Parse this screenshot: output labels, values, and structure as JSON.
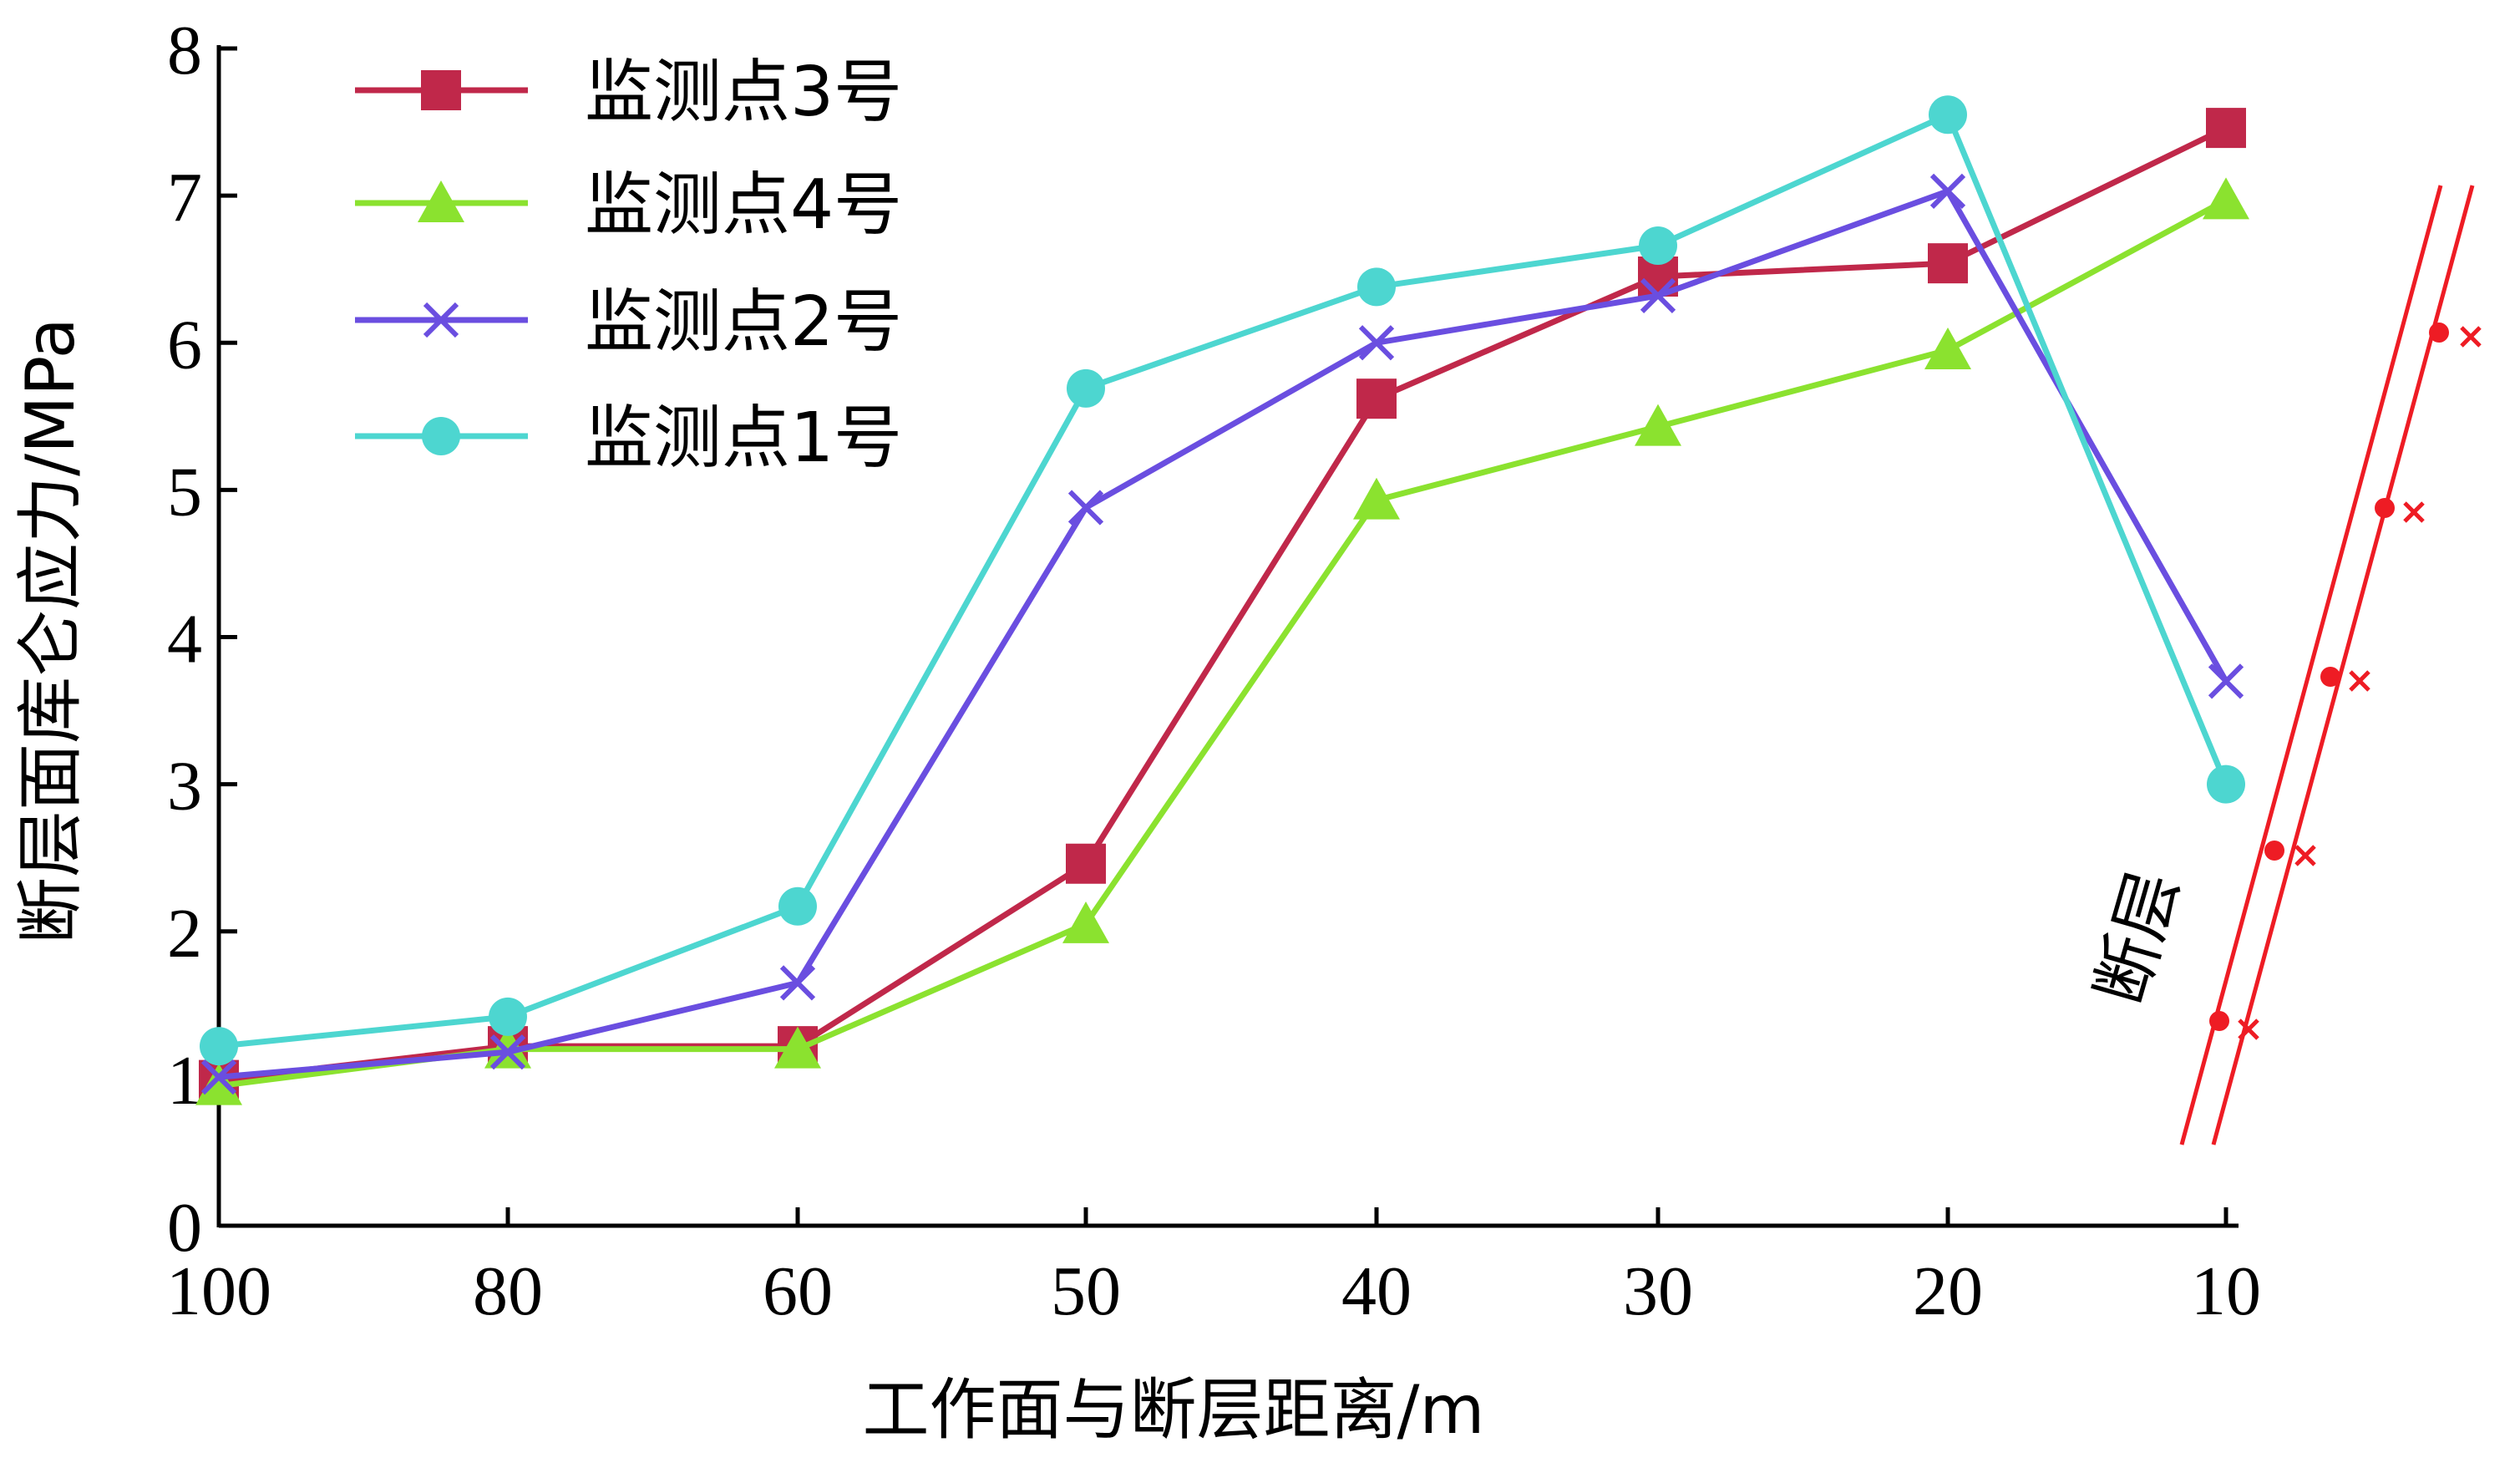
{
  "chart_data": {
    "type": "line",
    "xlabel": "工作面与断层距离/m",
    "ylabel": "断层面库仑应力/MPa",
    "categories": [
      "100",
      "80",
      "60",
      "50",
      "40",
      "30",
      "20",
      "10"
    ],
    "yticks": [
      "0",
      "1",
      "2",
      "3",
      "4",
      "5",
      "6",
      "7",
      "8"
    ],
    "ylim": [
      0,
      8
    ],
    "grid": false,
    "legend_position": "top-left",
    "series": [
      {
        "name": "监测点3号",
        "marker": "square",
        "color": "#c0284a",
        "values": [
          0.99,
          1.22,
          1.22,
          2.46,
          5.62,
          6.45,
          6.54,
          7.46
        ]
      },
      {
        "name": "监测点4号",
        "marker": "triangle",
        "color": "#8be22f",
        "values": [
          0.95,
          1.2,
          1.2,
          2.05,
          4.93,
          5.43,
          5.95,
          6.97
        ]
      },
      {
        "name": "监测点2号",
        "marker": "x",
        "color": "#6a4ee0",
        "values": [
          1.01,
          1.18,
          1.65,
          4.88,
          6.0,
          6.32,
          7.03,
          3.7
        ]
      },
      {
        "name": "监测点1号",
        "marker": "circle",
        "color": "#4dd6d0",
        "values": [
          1.22,
          1.42,
          2.17,
          5.69,
          6.38,
          6.66,
          7.55,
          3.0
        ]
      }
    ],
    "annotation": {
      "text": "断层",
      "color": "#ee1c24"
    }
  }
}
